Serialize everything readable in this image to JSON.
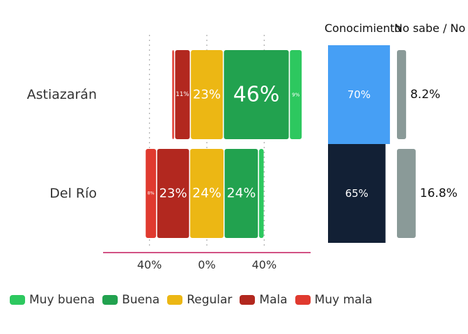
{
  "chart_data": [
    {
      "type": "bar",
      "orientation": "horizontal",
      "stacking": "diverging",
      "categories": [
        "Astiazarán",
        "Del Río"
      ],
      "series": [
        {
          "name": "Muy mala",
          "values": [
            2,
            8
          ]
        },
        {
          "name": "Mala",
          "values": [
            11,
            23
          ]
        },
        {
          "name": "Regular",
          "values": [
            23,
            24
          ]
        },
        {
          "name": "Buena",
          "values": [
            46,
            24
          ]
        },
        {
          "name": "Muy buena",
          "values": [
            9,
            4
          ]
        }
      ],
      "value_labels": [
        [
          "",
          "11%",
          "23%",
          "46%",
          "9%"
        ],
        [
          "8%",
          "23%",
          "24%",
          "24%",
          ""
        ]
      ],
      "xticks": [
        -40,
        0,
        40
      ],
      "xtick_labels": [
        "40%",
        "0%",
        "40%"
      ],
      "xlim": [
        -72,
        72
      ],
      "grid": "vertical dotted",
      "colors": {
        "Muy buena": "#2dc85f",
        "Buena": "#22a24f",
        "Regular": "#ecb714",
        "Mala": "#b2281f",
        "Muy mala": "#e03a2f"
      },
      "legend": {
        "position": "bottom",
        "items": [
          "Muy buena",
          "Buena",
          "Regular",
          "Mala",
          "Muy mala"
        ]
      }
    },
    {
      "type": "bar",
      "title": "Conocimiento",
      "categories": [
        "Astiazarán",
        "Del Río"
      ],
      "values": [
        70,
        65
      ],
      "value_labels": [
        "70%",
        "65%"
      ],
      "colors": [
        "#469ff5",
        "#122035"
      ]
    },
    {
      "type": "bar",
      "title": "No sabe / No",
      "categories": [
        "Astiazarán",
        "Del Río"
      ],
      "values": [
        8.2,
        16.8
      ],
      "value_labels": [
        "8.2%",
        "16.8%"
      ],
      "color": "#8a9a98"
    }
  ]
}
